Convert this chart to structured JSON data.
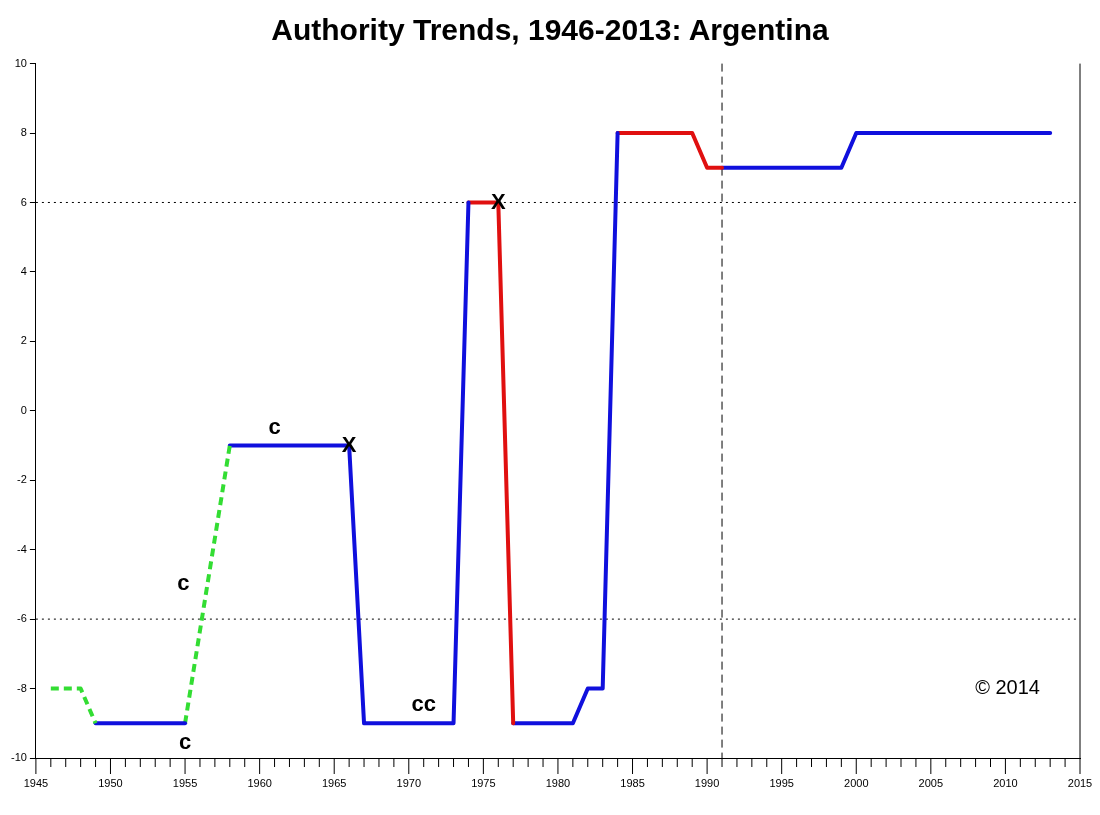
{
  "chart_data": {
    "type": "line",
    "title": "Authority Trends, 1946-2013: Argentina",
    "series": [
      {
        "color": "#33dd33",
        "line_style": "dashed",
        "x": [
          1946,
          1948,
          1949
        ],
        "values": [
          -8,
          -8,
          -9
        ]
      },
      {
        "color": "#1010dd",
        "line_style": "solid",
        "x": [
          1949,
          1955
        ],
        "values": [
          -9,
          -9
        ]
      },
      {
        "color": "#33dd33",
        "line_style": "dashed",
        "x": [
          1955,
          1958
        ],
        "values": [
          -9,
          -1
        ]
      },
      {
        "color": "#1010dd",
        "line_style": "solid",
        "x": [
          1958,
          1966,
          1967,
          1973,
          1974
        ],
        "values": [
          -1,
          -1,
          -9,
          -9,
          6
        ]
      },
      {
        "color": "#e01010",
        "line_style": "solid",
        "x": [
          1974,
          1976,
          1977
        ],
        "values": [
          6,
          6,
          -9
        ]
      },
      {
        "color": "#1010dd",
        "line_style": "solid",
        "x": [
          1977,
          1981,
          1982,
          1983,
          1984
        ],
        "values": [
          -9,
          -9,
          -8,
          -8,
          8
        ]
      },
      {
        "color": "#e01010",
        "line_style": "solid",
        "x": [
          1984,
          1989,
          1990,
          1991
        ],
        "values": [
          8,
          8,
          7,
          7
        ]
      },
      {
        "color": "#1010dd",
        "line_style": "solid",
        "x": [
          1991,
          1999,
          2000,
          2013
        ],
        "values": [
          7,
          7,
          8,
          8
        ]
      }
    ],
    "xlim": [
      1945,
      2015
    ],
    "xticks": [
      1945,
      {
        "value": 1946,
        "label": null
      },
      {
        "value": 1947,
        "label": null
      },
      {
        "value": 1948,
        "label": null
      },
      {
        "value": 1949,
        "label": null
      },
      1950,
      {
        "value": 1951,
        "label": null
      },
      {
        "value": 1952,
        "label": null
      },
      {
        "value": 1953,
        "label": null
      },
      {
        "value": 1954,
        "label": null
      },
      1955,
      {
        "value": 1956,
        "label": null
      },
      {
        "value": 1957,
        "label": null
      },
      {
        "value": 1958,
        "label": null
      },
      {
        "value": 1959,
        "label": null
      },
      1960,
      {
        "value": 1961,
        "label": null
      },
      {
        "value": 1962,
        "label": null
      },
      {
        "value": 1963,
        "label": null
      },
      {
        "value": 1964,
        "label": null
      },
      1965,
      {
        "value": 1966,
        "label": null
      },
      {
        "value": 1967,
        "label": null
      },
      {
        "value": 1968,
        "label": null
      },
      {
        "value": 1969,
        "label": null
      },
      1970,
      {
        "value": 1971,
        "label": null
      },
      {
        "value": 1972,
        "label": null
      },
      {
        "value": 1973,
        "label": null
      },
      {
        "value": 1974,
        "label": null
      },
      1975,
      {
        "value": 1976,
        "label": null
      },
      {
        "value": 1977,
        "label": null
      },
      {
        "value": 1978,
        "label": null
      },
      {
        "value": 1979,
        "label": null
      },
      1980,
      {
        "value": 1981,
        "label": null
      },
      {
        "value": 1982,
        "label": null
      },
      {
        "value": 1983,
        "label": null
      },
      {
        "value": 1984,
        "label": null
      },
      1985,
      {
        "value": 1986,
        "label": null
      },
      {
        "value": 1987,
        "label": null
      },
      {
        "value": 1988,
        "label": null
      },
      {
        "value": 1989,
        "label": null
      },
      1990,
      {
        "value": 1991,
        "label": null
      },
      {
        "value": 1992,
        "label": null
      },
      {
        "value": 1993,
        "label": null
      },
      {
        "value": 1994,
        "label": null
      },
      1995,
      {
        "value": 1996,
        "label": null
      },
      {
        "value": 1997,
        "label": null
      },
      {
        "value": 1998,
        "label": null
      },
      {
        "value": 1999,
        "label": null
      },
      2000,
      {
        "value": 2001,
        "label": null
      },
      {
        "value": 2002,
        "label": null
      },
      {
        "value": 2003,
        "label": null
      },
      {
        "value": 2004,
        "label": null
      },
      2005,
      {
        "value": 2006,
        "label": null
      },
      {
        "value": 2007,
        "label": null
      },
      {
        "value": 2008,
        "label": null
      },
      {
        "value": 2009,
        "label": null
      },
      2010,
      {
        "value": 2011,
        "label": null
      },
      {
        "value": 2012,
        "label": null
      },
      {
        "value": 2013,
        "label": null
      },
      {
        "value": 2014,
        "label": null
      },
      2015
    ],
    "ylim": [
      -10,
      10
    ],
    "yticks": [
      -10,
      -8,
      -6,
      -4,
      -2,
      0,
      2,
      4,
      6,
      8,
      10
    ],
    "ref_lines": [
      {
        "axis": "y",
        "value": 6,
        "line_style": "dotted"
      },
      {
        "axis": "y",
        "value": -6,
        "line_style": "dotted"
      },
      {
        "axis": "x",
        "value": 1991,
        "line_style": "dashed"
      }
    ],
    "annotations": [
      {
        "text": "c",
        "x": 1955,
        "y": -9
      },
      {
        "text": "c",
        "x": 1956.5,
        "y": -5
      },
      {
        "text": "c",
        "x": 1961,
        "y": -1
      },
      {
        "text": "X",
        "x": 1966,
        "y": -1
      },
      {
        "text": "X",
        "x": 1976,
        "y": 6
      },
      {
        "text": "cc",
        "x": 1971,
        "y": -9
      },
      "© 2014"
    ],
    "grid": false,
    "legend": false,
    "marker": "none"
  }
}
